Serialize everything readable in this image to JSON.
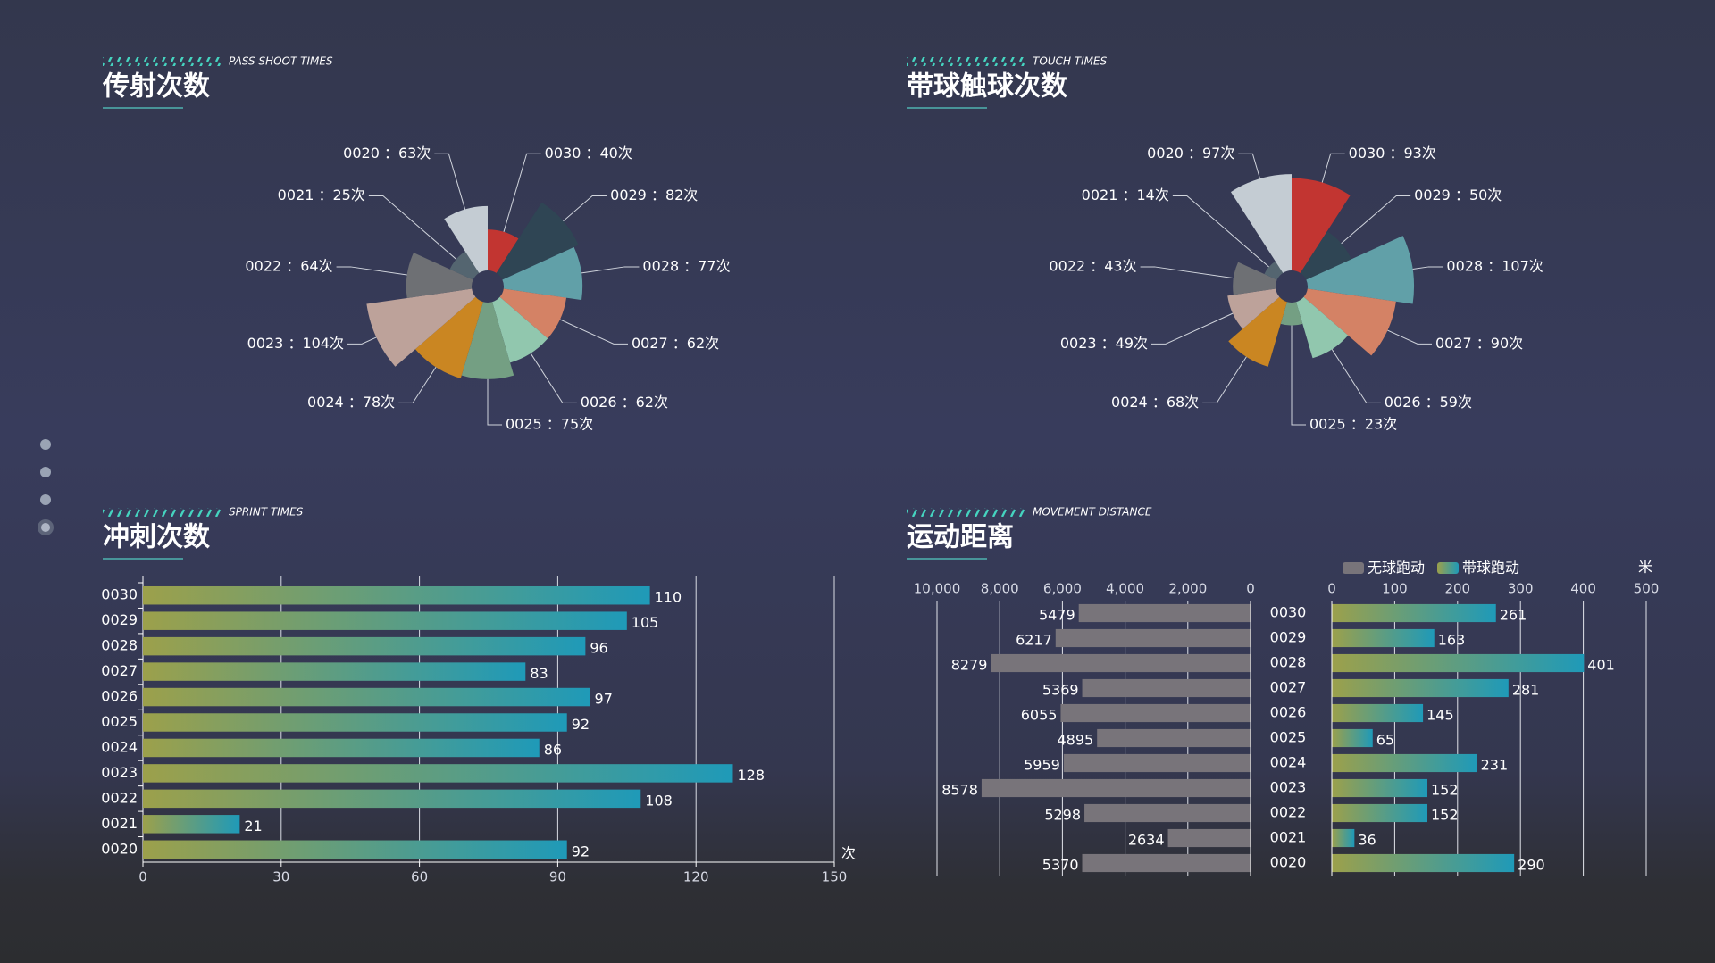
{
  "chart_data": [
    {
      "type": "pie",
      "rose": true,
      "title": "传射次数",
      "subtitle": "PASS SHOOT TIMES",
      "values": [
        40,
        82,
        77,
        62,
        62,
        75,
        78,
        104,
        64,
        25,
        63
      ],
      "value_labels": [
        "0030 ：40次",
        "0029 ：82次",
        "0028 ：77次",
        "0027 ：62次",
        "0026 ：62次",
        "0025 ：75次",
        "0024 ：78次",
        "0023 ：104次",
        "0022 ：64次",
        "0021 ：25次",
        "0020 ：63次"
      ],
      "colors": [
        "#c23531",
        "#2f4554",
        "#61a0a8",
        "#d48265",
        "#91c7ae",
        "#749f83",
        "#ca8622",
        "#bda29a",
        "#6e7074",
        "#546570",
        "#c4ccd3"
      ]
    },
    {
      "type": "pie",
      "rose": true,
      "title": "带球触球次数",
      "subtitle": "TOUCH TIMES",
      "values": [
        93,
        50,
        107,
        90,
        59,
        23,
        68,
        49,
        43,
        14,
        97
      ],
      "value_labels": [
        "0030 ：93次",
        "0029 ：50次",
        "0028 ：107次",
        "0027 ：90次",
        "0026 ：59次",
        "0025 ：23次",
        "0024 ：68次",
        "0023 ：49次",
        "0022 ：43次",
        "0021 ：14次",
        "0020 ：97次"
      ],
      "colors": [
        "#c23531",
        "#2f4554",
        "#61a0a8",
        "#d48265",
        "#91c7ae",
        "#749f83",
        "#ca8622",
        "#bda29a",
        "#6e7074",
        "#546570",
        "#c4ccd3"
      ]
    },
    {
      "type": "bar",
      "title": "冲刺次数",
      "subtitle": "SPRINT TIMES",
      "categories": [
        "0030",
        "0029",
        "0028",
        "0027",
        "0026",
        "0025",
        "0024",
        "0023",
        "0022",
        "0021",
        "0020"
      ],
      "values": [
        110,
        105,
        96,
        83,
        97,
        92,
        86,
        128,
        108,
        21,
        92
      ],
      "gradient": [
        "#9ca04b",
        "#1f9ab8"
      ],
      "xlim": [
        0,
        150
      ],
      "xticks": [
        0,
        30,
        60,
        90,
        120,
        150
      ],
      "xlabel": "次",
      "grid": true
    },
    {
      "type": "bar",
      "title": "运动距离",
      "subtitle": "MOVEMENT DISTANCE",
      "categories": [
        "0030",
        "0029",
        "0028",
        "0027",
        "0026",
        "0025",
        "0024",
        "0023",
        "0022",
        "0021",
        "0020"
      ],
      "series": [
        {
          "name": "无球跑动",
          "color": "#78747a",
          "values": [
            5479,
            6217,
            8279,
            5369,
            6055,
            4895,
            5959,
            8578,
            5298,
            2634,
            5370
          ]
        },
        {
          "name": "带球跑动",
          "gradient": [
            "#9ca04b",
            "#1f9ab8"
          ],
          "axis": "x2",
          "values": [
            261,
            163,
            401,
            281,
            145,
            65,
            231,
            152,
            152,
            36,
            290
          ]
        }
      ],
      "xlim": [
        0,
        10000
      ],
      "xreverse": true,
      "xticks": [
        {
          "value": 10000,
          "label": "10,000"
        },
        {
          "value": 8000,
          "label": "8,000"
        },
        {
          "value": 6000,
          "label": "6,000"
        },
        {
          "value": 4000,
          "label": "4,000"
        },
        {
          "value": 2000,
          "label": "2,000"
        },
        0
      ],
      "x2lim": [
        0,
        500
      ],
      "x2ticks": [
        0,
        100,
        200,
        300,
        400,
        500
      ],
      "x2label": "米",
      "grid": true
    }
  ]
}
